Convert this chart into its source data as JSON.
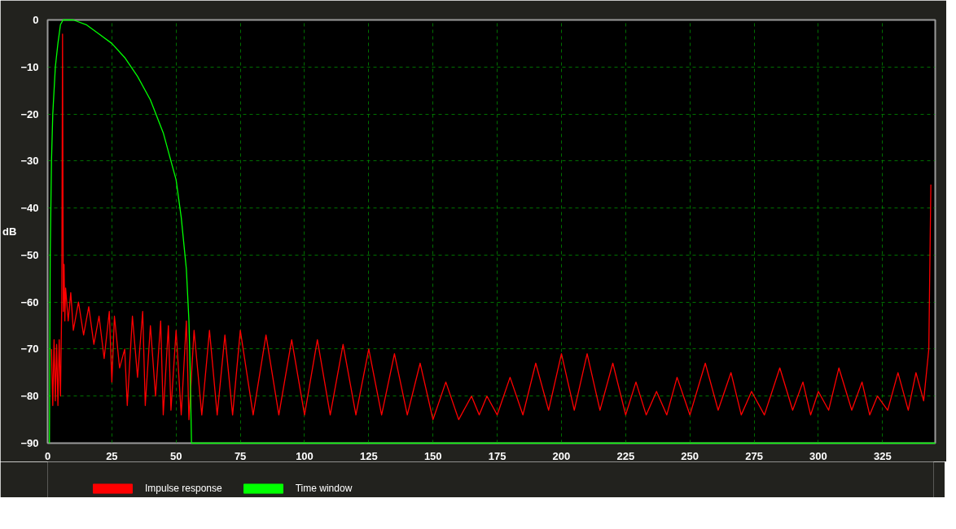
{
  "chart_data": {
    "type": "line",
    "ylabel": "dB",
    "xlim": [
      0,
      345.5
    ],
    "ylim": [
      -90,
      0
    ],
    "xticks": [
      0,
      25,
      50,
      75,
      100,
      125,
      150,
      175,
      200,
      225,
      250,
      275,
      300,
      325
    ],
    "yticks": [
      0,
      -10,
      -20,
      -30,
      -40,
      -50,
      -60,
      -70,
      -80,
      -90
    ],
    "grid": true,
    "legend": "bottom left",
    "marker": "none",
    "line_style": "solid",
    "series": [
      {
        "name": "Impulse response",
        "color": "#ff0000",
        "x": [
          1.5,
          2,
          2.5,
          3,
          3.5,
          4,
          4.5,
          5,
          5.5,
          5.8,
          6.1,
          6.4,
          6.7,
          7,
          8,
          9,
          10,
          12,
          14,
          16,
          18,
          20,
          22,
          24,
          25,
          26,
          28,
          30,
          31,
          33,
          35,
          37,
          38,
          40,
          42,
          44,
          45,
          47,
          48,
          50,
          52,
          54,
          55,
          57,
          60,
          63,
          66,
          69,
          72,
          75,
          80,
          85,
          90,
          95,
          100,
          105,
          110,
          115,
          120,
          125,
          130,
          135,
          140,
          145,
          150,
          155,
          160,
          165,
          168,
          171,
          175,
          180,
          185,
          190,
          195,
          200,
          205,
          210,
          215,
          220,
          225,
          229,
          233,
          237,
          241,
          245,
          250,
          256,
          261,
          266,
          270,
          274,
          279,
          285,
          290,
          294,
          297,
          300,
          304,
          308,
          313,
          317,
          320,
          323,
          327,
          331,
          335,
          338,
          341,
          343,
          343.8
        ],
        "values": [
          -70,
          -82,
          -68,
          -81,
          -69,
          -82,
          -68,
          -80,
          -60,
          -3,
          -62,
          -52,
          -64,
          -57,
          -64,
          -58,
          -66,
          -60,
          -67,
          -61,
          -69,
          -63,
          -72,
          -62,
          -77,
          -63,
          -74,
          -70,
          -82,
          -63,
          -76,
          -62,
          -82,
          -65,
          -80,
          -64,
          -84,
          -65,
          -83,
          -66,
          -84,
          -64,
          -85,
          -66,
          -84,
          -66,
          -84,
          -67,
          -84,
          -66,
          -84,
          -67,
          -84,
          -68,
          -84,
          -68,
          -84,
          -69,
          -84,
          -70,
          -84,
          -71,
          -84,
          -73,
          -85,
          -77,
          -85,
          -80,
          -84,
          -80,
          -84,
          -76,
          -84,
          -73,
          -83,
          -71,
          -83,
          -71,
          -83,
          -73,
          -84,
          -77,
          -84,
          -79,
          -84,
          -76,
          -84,
          -73,
          -83,
          -75,
          -84,
          -79,
          -84,
          -74,
          -83,
          -77,
          -84,
          -79,
          -83,
          -74,
          -83,
          -77,
          -84,
          -80,
          -83,
          -75,
          -83,
          -75,
          -81,
          -70,
          -35
        ]
      },
      {
        "name": "Time window",
        "color": "#00ff00",
        "x": [
          0.7,
          1,
          1.5,
          2,
          3,
          4,
          5,
          6,
          8,
          10,
          15,
          20,
          25,
          30,
          35,
          40,
          45,
          48,
          50,
          52,
          54,
          55,
          55.5,
          56,
          100,
          200,
          300,
          345.5
        ],
        "values": [
          -90,
          -50,
          -30,
          -20,
          -10,
          -5,
          -1,
          0,
          0,
          0,
          -1,
          -3,
          -5,
          -8,
          -12,
          -17,
          -24,
          -30,
          -34,
          -42,
          -53,
          -64,
          -75,
          -90,
          -90,
          -90,
          -90,
          -90
        ]
      }
    ]
  }
}
